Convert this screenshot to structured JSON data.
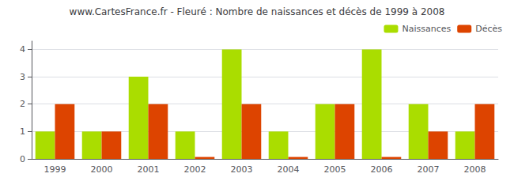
{
  "chart_data": {
    "type": "bar",
    "title": "www.CartesFrance.fr - Fleuré : Nombre de naissances et décès de 1999 à 2008",
    "categories": [
      "1999",
      "2000",
      "2001",
      "2002",
      "2003",
      "2004",
      "2005",
      "2006",
      "2007",
      "2008"
    ],
    "series": [
      {
        "name": "Naissances",
        "color": "#aadd00",
        "values": [
          1,
          1,
          3,
          1,
          4,
          1,
          2,
          4,
          2,
          1
        ]
      },
      {
        "name": "Décès",
        "color": "#dd4400",
        "values": [
          2,
          1,
          2,
          0.07,
          2,
          0.07,
          2,
          0.07,
          1,
          2
        ]
      }
    ],
    "ylim": [
      0,
      4.3
    ],
    "yticks": [
      0,
      1,
      2,
      3,
      4
    ],
    "grid": true,
    "legend": "upper right"
  }
}
